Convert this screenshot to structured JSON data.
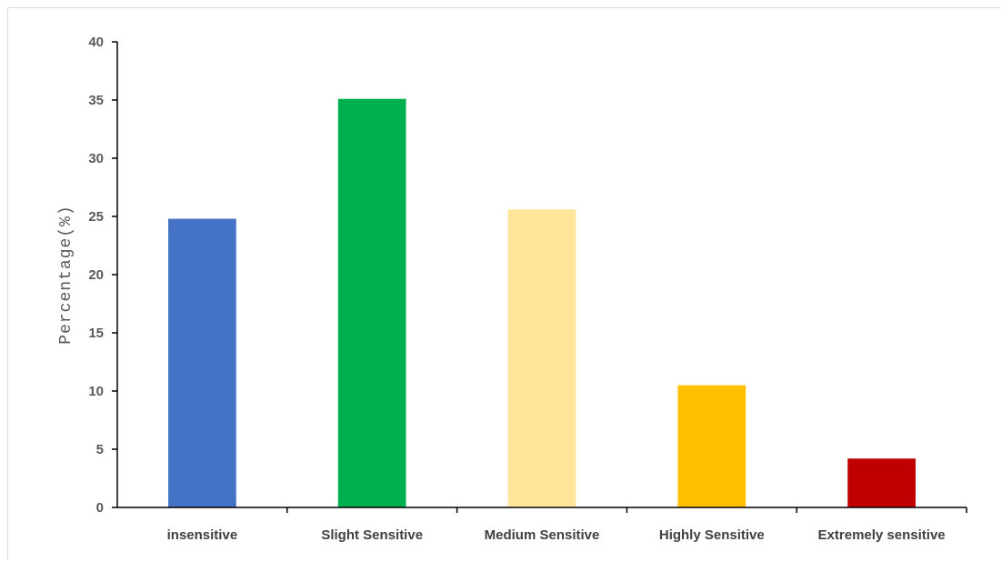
{
  "chart_data": {
    "type": "bar",
    "title": "",
    "xlabel": "",
    "ylabel": "Percentage(%)",
    "ylim": [
      0,
      40
    ],
    "yticks": [
      0,
      5,
      10,
      15,
      20,
      25,
      30,
      35,
      40
    ],
    "grid": false,
    "legend": "none",
    "categories": [
      "insensitive",
      "Slight Sensitive",
      "Medium Sensitive",
      "Highly Sensitive",
      "Extremely sensitive"
    ],
    "values": [
      24.8,
      35.1,
      25.6,
      10.5,
      4.2
    ],
    "colors": [
      "#4472c4",
      "#00b050",
      "#ffe699",
      "#ffc000",
      "#c00000"
    ]
  }
}
